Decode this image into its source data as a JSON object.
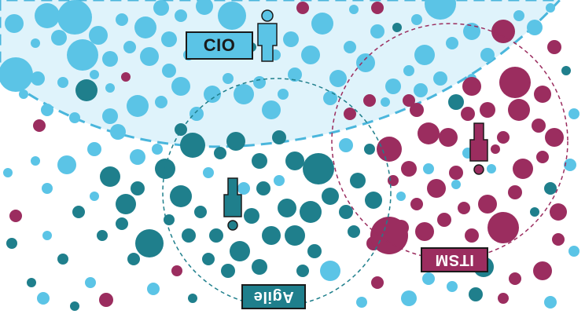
{
  "labels": {
    "cio": "CIO",
    "itsm": "ITSM",
    "agile": "Agile"
  },
  "colors": {
    "blue": "#5bc4e6",
    "teal": "#1f7f8c",
    "magenta": "#9b2d5f",
    "cio_zone": "#dff3fb",
    "cio_border": "#4ab6dc",
    "agile_box": "#1f7f8c",
    "itsm_box": "#9b2d5f",
    "cio_box": "#5bc4e6"
  },
  "icons": {
    "cio": "standing-person-icon",
    "agile": "inverted-person-icon",
    "itsm": "inverted-person-icon"
  }
}
